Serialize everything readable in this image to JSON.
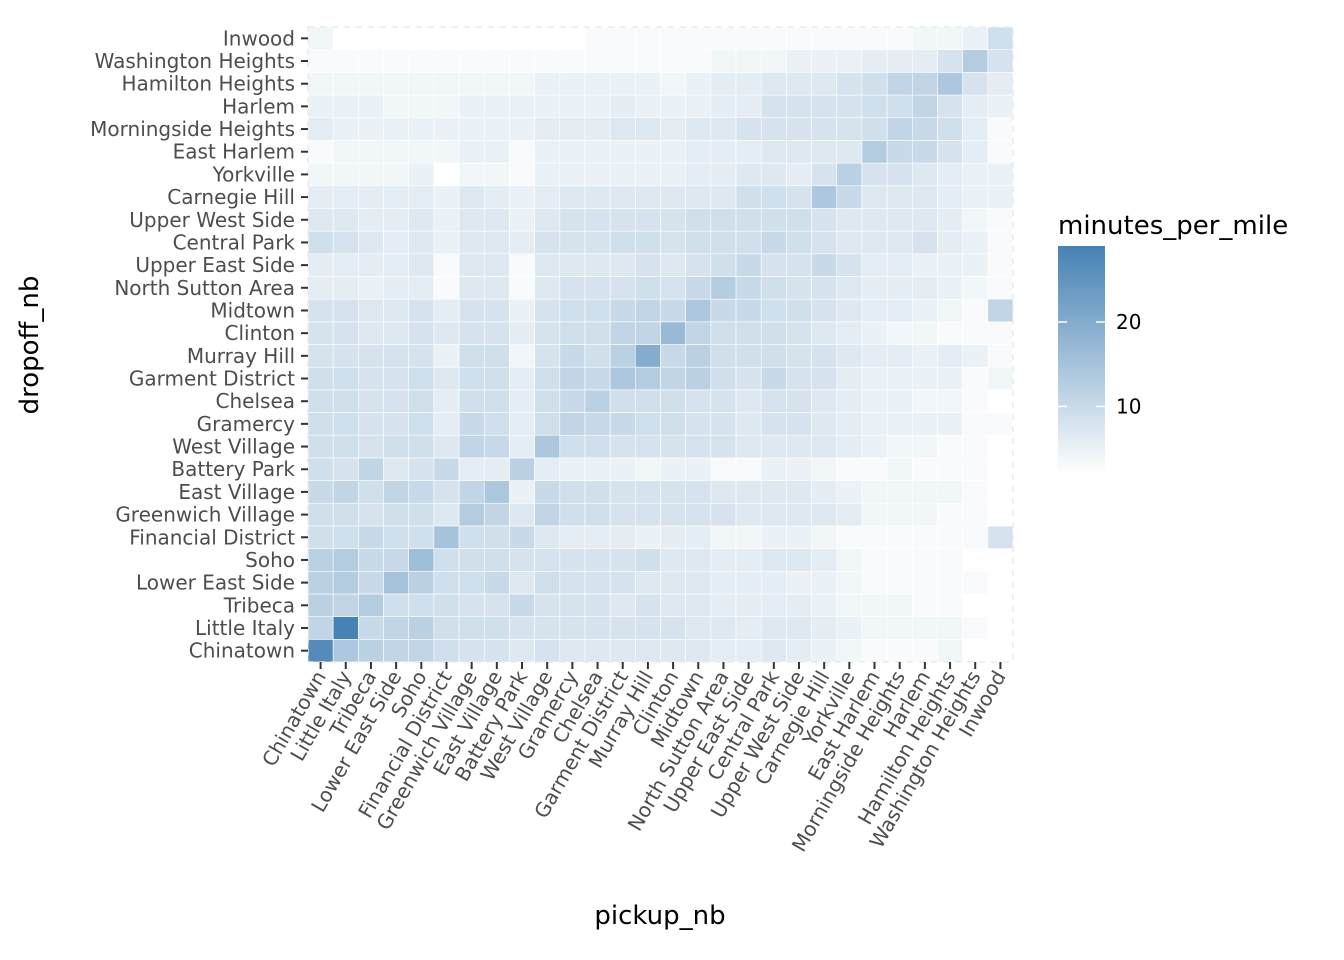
{
  "chart_data": {
    "type": "heatmap",
    "xlabel": "pickup_nb",
    "ylabel": "dropoff_nb",
    "categories": [
      "Chinatown",
      "Little Italy",
      "Tribeca",
      "Lower East Side",
      "Soho",
      "Financial District",
      "Greenwich Village",
      "East Village",
      "Battery Park",
      "West Village",
      "Gramercy",
      "Chelsea",
      "Garment District",
      "Murray Hill",
      "Clinton",
      "Midtown",
      "North Sutton Area",
      "Upper East Side",
      "Central Park",
      "Upper West Side",
      "Carnegie Hill",
      "Yorkville",
      "East Harlem",
      "Morningside Heights",
      "Harlem",
      "Hamilton Heights",
      "Washington Heights",
      "Inwood"
    ],
    "legend": {
      "title": "minutes_per_mile",
      "ticks": [
        10,
        20
      ],
      "tick_labels": [
        "10",
        "20"
      ],
      "range": [
        2,
        29
      ],
      "low_color": "#ffffff",
      "high_color": "#4682b4"
    },
    "grid": true,
    "values": [
      [
        27,
        14,
        12,
        11,
        11,
        9,
        8,
        8,
        7,
        8,
        7,
        7,
        7,
        7,
        7,
        7,
        6,
        6,
        7,
        6,
        5,
        4,
        3,
        3,
        3,
        4,
        2,
        2
      ],
      [
        11,
        29,
        10,
        11,
        12,
        9,
        9,
        9,
        8,
        8,
        8,
        8,
        8,
        8,
        8,
        7,
        7,
        6,
        7,
        7,
        6,
        5,
        4,
        4,
        4,
        4,
        3,
        2
      ],
      [
        12,
        11,
        13,
        9,
        9,
        9,
        8,
        8,
        10,
        8,
        8,
        8,
        7,
        8,
        7,
        7,
        6,
        6,
        6,
        6,
        5,
        4,
        4,
        4,
        3,
        3,
        2,
        2
      ],
      [
        12,
        13,
        10,
        15,
        12,
        9,
        9,
        10,
        7,
        9,
        8,
        8,
        8,
        7,
        7,
        7,
        6,
        6,
        6,
        5,
        5,
        4,
        3,
        3,
        3,
        3,
        3,
        2
      ],
      [
        12,
        13,
        10,
        10,
        16,
        9,
        9,
        9,
        8,
        8,
        8,
        8,
        8,
        9,
        7,
        7,
        6,
        6,
        7,
        7,
        6,
        4,
        3,
        3,
        3,
        3,
        2,
        2
      ],
      [
        9,
        9,
        10,
        9,
        9,
        15,
        9,
        9,
        10,
        7,
        6,
        6,
        6,
        5,
        6,
        6,
        4,
        4,
        5,
        5,
        4,
        3,
        3,
        3,
        3,
        3,
        3,
        8
      ],
      [
        9,
        9,
        8,
        9,
        9,
        7,
        13,
        11,
        7,
        11,
        9,
        9,
        8,
        8,
        8,
        8,
        8,
        7,
        7,
        7,
        7,
        6,
        4,
        4,
        4,
        3,
        3,
        2
      ],
      [
        10,
        11,
        9,
        11,
        10,
        8,
        11,
        14,
        5,
        10,
        9,
        9,
        8,
        8,
        8,
        8,
        7,
        7,
        7,
        7,
        6,
        5,
        4,
        4,
        4,
        4,
        3,
        2
      ],
      [
        9,
        8,
        11,
        7,
        8,
        10,
        6,
        6,
        12,
        6,
        5,
        5,
        5,
        4,
        5,
        5,
        3,
        3,
        5,
        5,
        4,
        3,
        3,
        4,
        3,
        3,
        3,
        2
      ],
      [
        9,
        9,
        8,
        9,
        9,
        7,
        11,
        10,
        6,
        14,
        9,
        9,
        8,
        8,
        8,
        8,
        8,
        7,
        7,
        7,
        7,
        6,
        5,
        4,
        4,
        3,
        3,
        2
      ],
      [
        9,
        9,
        8,
        8,
        9,
        6,
        10,
        9,
        6,
        9,
        11,
        10,
        10,
        9,
        9,
        8,
        8,
        7,
        8,
        8,
        7,
        6,
        5,
        5,
        5,
        5,
        3,
        3
      ],
      [
        9,
        9,
        8,
        8,
        9,
        6,
        9,
        9,
        6,
        9,
        10,
        12,
        9,
        9,
        9,
        8,
        8,
        7,
        8,
        8,
        7,
        6,
        5,
        5,
        4,
        4,
        3,
        2
      ],
      [
        9,
        9,
        8,
        8,
        9,
        7,
        9,
        9,
        6,
        9,
        11,
        10,
        14,
        13,
        11,
        12,
        9,
        8,
        10,
        8,
        8,
        6,
        5,
        5,
        5,
        5,
        3,
        4
      ],
      [
        8,
        8,
        8,
        8,
        8,
        5,
        9,
        9,
        4,
        8,
        10,
        9,
        12,
        20,
        10,
        12,
        9,
        9,
        9,
        8,
        8,
        7,
        6,
        6,
        5,
        6,
        5,
        3
      ],
      [
        8,
        8,
        7,
        7,
        8,
        7,
        8,
        8,
        6,
        8,
        9,
        9,
        11,
        11,
        17,
        11,
        9,
        9,
        9,
        8,
        7,
        6,
        5,
        4,
        4,
        3,
        3,
        3
      ],
      [
        8,
        8,
        7,
        7,
        8,
        6,
        8,
        8,
        5,
        8,
        9,
        9,
        10,
        11,
        10,
        14,
        10,
        10,
        9,
        9,
        8,
        7,
        6,
        6,
        5,
        4,
        3,
        11
      ],
      [
        6,
        6,
        5,
        6,
        6,
        3,
        7,
        7,
        3,
        7,
        8,
        8,
        8,
        9,
        8,
        10,
        13,
        10,
        9,
        8,
        8,
        7,
        6,
        6,
        6,
        5,
        4,
        3
      ],
      [
        6,
        6,
        6,
        6,
        7,
        3,
        7,
        7,
        3,
        7,
        7,
        7,
        7,
        8,
        7,
        8,
        9,
        10,
        8,
        8,
        10,
        8,
        6,
        6,
        5,
        5,
        5,
        3
      ],
      [
        9,
        8,
        7,
        6,
        7,
        5,
        7,
        7,
        6,
        8,
        8,
        8,
        9,
        9,
        8,
        9,
        9,
        9,
        10,
        9,
        8,
        7,
        7,
        7,
        8,
        6,
        5,
        3
      ],
      [
        7,
        7,
        6,
        6,
        7,
        5,
        7,
        7,
        5,
        7,
        8,
        8,
        8,
        8,
        8,
        9,
        9,
        9,
        9,
        9,
        8,
        7,
        7,
        7,
        7,
        6,
        4,
        3
      ],
      [
        6,
        6,
        6,
        6,
        6,
        5,
        7,
        6,
        5,
        6,
        7,
        7,
        7,
        7,
        7,
        7,
        7,
        9,
        9,
        8,
        14,
        10,
        7,
        7,
        7,
        6,
        5,
        5
      ],
      [
        4,
        4,
        4,
        4,
        5,
        2,
        4,
        4,
        3,
        5,
        5,
        5,
        5,
        5,
        5,
        6,
        6,
        7,
        7,
        6,
        8,
        12,
        8,
        8,
        7,
        6,
        5,
        5
      ],
      [
        3,
        4,
        4,
        4,
        4,
        4,
        5,
        5,
        3,
        5,
        5,
        5,
        5,
        5,
        5,
        6,
        6,
        6,
        7,
        7,
        7,
        7,
        13,
        10,
        10,
        8,
        6,
        3
      ],
      [
        6,
        5,
        5,
        5,
        5,
        5,
        5,
        5,
        5,
        6,
        6,
        6,
        7,
        7,
        6,
        7,
        7,
        8,
        8,
        8,
        8,
        8,
        9,
        11,
        10,
        9,
        6,
        3
      ],
      [
        5,
        5,
        5,
        4,
        4,
        4,
        5,
        5,
        5,
        5,
        5,
        5,
        6,
        5,
        5,
        5,
        6,
        6,
        8,
        8,
        8,
        8,
        9,
        9,
        11,
        8,
        6,
        5
      ],
      [
        4,
        4,
        4,
        4,
        4,
        4,
        4,
        4,
        4,
        5,
        5,
        5,
        5,
        5,
        4,
        5,
        6,
        6,
        7,
        7,
        7,
        8,
        9,
        11,
        11,
        14,
        8,
        6
      ],
      [
        3,
        3,
        3,
        3,
        3,
        3,
        3,
        3,
        3,
        3,
        3,
        3,
        3,
        3,
        3,
        3,
        4,
        4,
        4,
        5,
        5,
        5,
        6,
        6,
        6,
        8,
        13,
        8
      ],
      [
        4,
        2,
        2,
        2,
        2,
        2,
        2,
        2,
        2,
        2,
        2,
        3,
        3,
        3,
        3,
        3,
        3,
        3,
        3,
        3,
        3,
        3,
        3,
        3,
        4,
        4,
        5,
        9
      ]
    ]
  }
}
